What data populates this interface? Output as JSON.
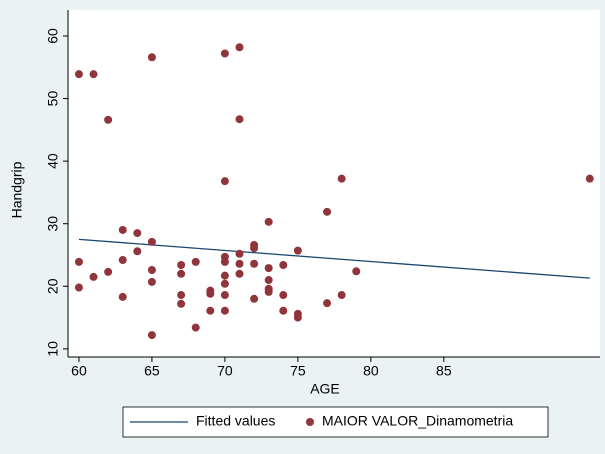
{
  "chart_data": {
    "type": "scatter",
    "xlabel": "AGE",
    "ylabel": "Handgrip",
    "xlim": [
      59.25,
      95.7
    ],
    "ylim": [
      8.7,
      64.15
    ],
    "xticks": [
      60,
      65,
      70,
      75,
      80,
      85
    ],
    "yticks": [
      10,
      20,
      30,
      40,
      50,
      60
    ],
    "legend": "bottom",
    "series": [
      {
        "name": "Fitted values",
        "style": "line",
        "color": "#1a476f",
        "x": [
          60,
          95
        ],
        "values": [
          27.5,
          21.3
        ]
      },
      {
        "name": "MAIOR VALOR_Dinamometria",
        "style": "points",
        "color": "#90353b",
        "x": [
          60,
          61,
          62,
          65,
          70,
          71,
          71,
          70,
          77,
          78,
          95,
          73,
          63,
          64,
          65,
          60,
          60,
          61,
          62,
          63,
          64,
          63,
          65,
          65,
          65,
          67,
          67,
          67,
          67,
          68,
          68,
          69,
          69,
          69,
          70,
          70,
          70,
          70,
          70,
          70,
          71,
          71,
          71,
          72,
          72,
          72,
          72,
          73,
          73,
          73,
          73,
          74,
          74,
          74,
          75,
          75,
          75,
          77,
          78,
          79
        ],
        "values": [
          53.9,
          53.9,
          46.6,
          56.6,
          57.2,
          58.2,
          46.7,
          36.8,
          31.9,
          37.2,
          37.2,
          30.3,
          29.0,
          28.5,
          27.1,
          23.9,
          19.8,
          21.5,
          22.3,
          24.2,
          25.6,
          18.3,
          22.6,
          20.7,
          12.2,
          23.4,
          22.0,
          18.6,
          17.2,
          23.9,
          13.4,
          19.3,
          18.8,
          16.1,
          24.7,
          23.9,
          21.7,
          20.4,
          18.6,
          16.1,
          25.2,
          23.6,
          22.0,
          26.6,
          26.1,
          23.6,
          18.0,
          22.9,
          21.0,
          19.6,
          19.1,
          23.4,
          18.6,
          16.1,
          25.7,
          15.6,
          15.0,
          17.3,
          18.6,
          22.4
        ]
      }
    ]
  }
}
